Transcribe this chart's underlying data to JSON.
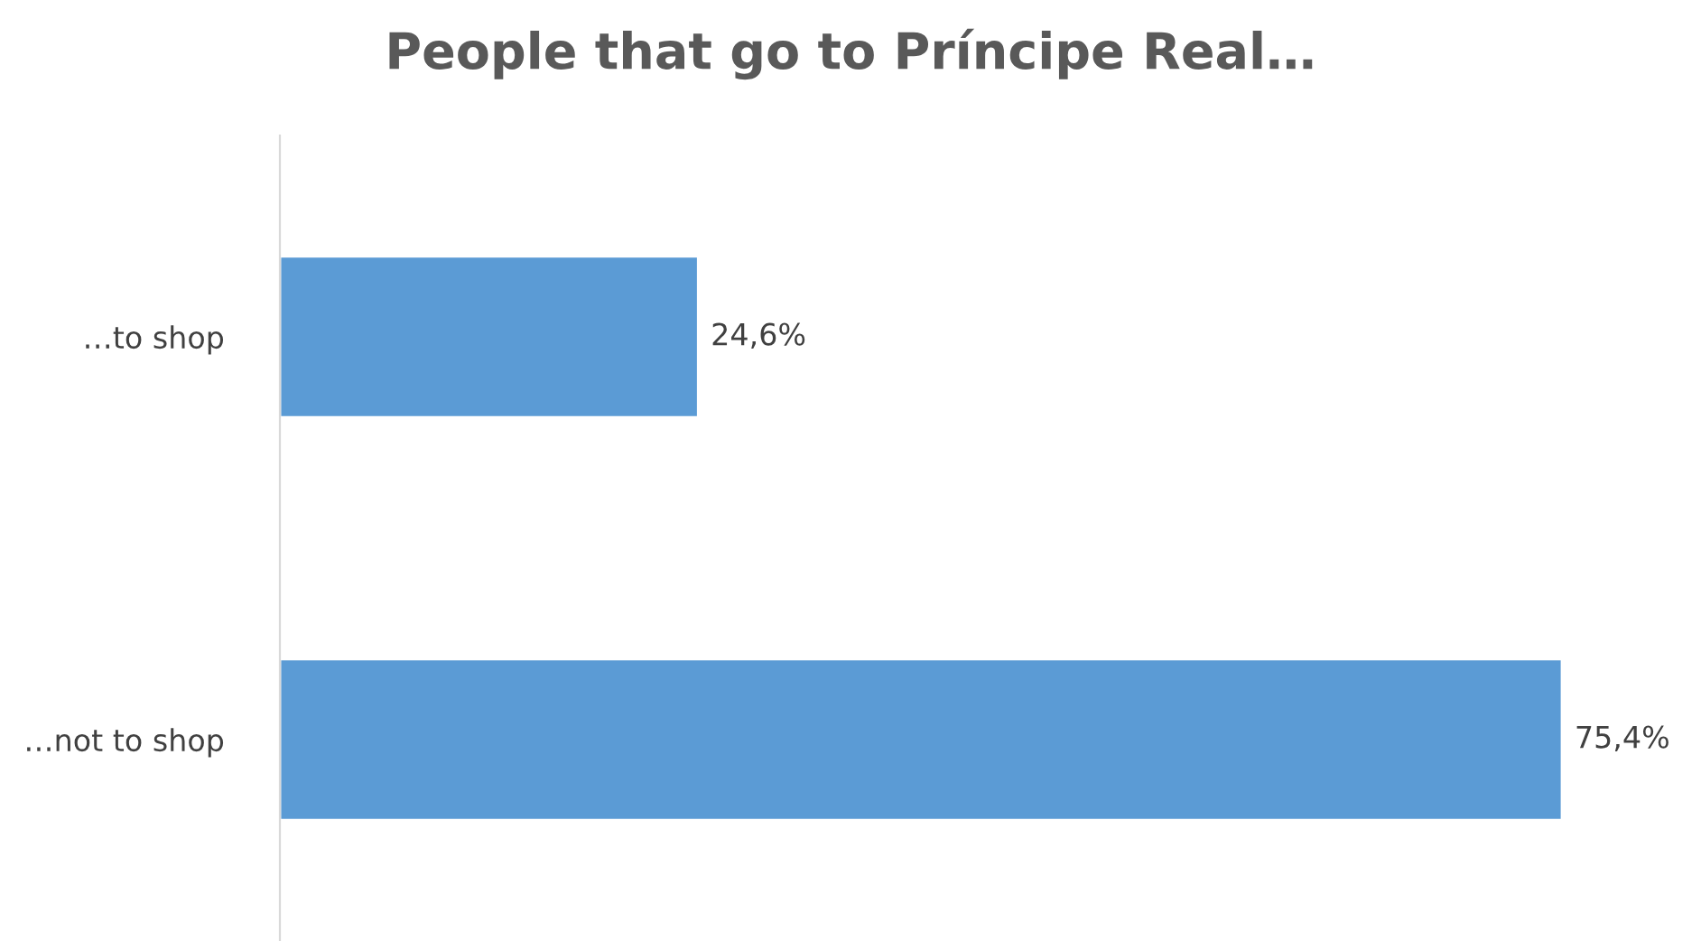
{
  "chart_data": {
    "type": "bar",
    "orientation": "horizontal",
    "title": "People that go to Príncipe Real…",
    "categories": [
      "…to shop",
      "…not to shop"
    ],
    "values": [
      24.6,
      75.4
    ],
    "value_labels": [
      "24,6%",
      "75,4%"
    ],
    "color": "#5b9bd5",
    "grid": false,
    "legend": false
  }
}
